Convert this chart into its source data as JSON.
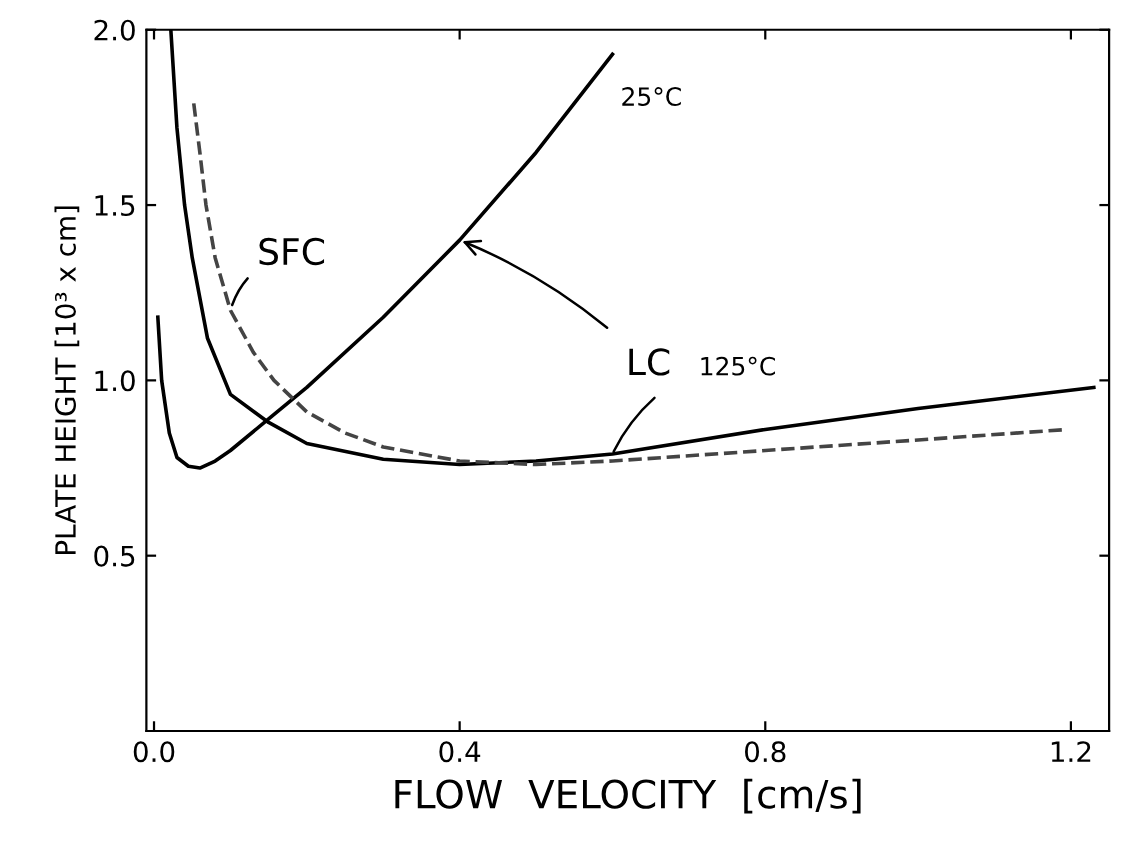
{
  "chart_data": {
    "type": "line",
    "xlabel": "FLOW  VELOCITY  [cm/s]",
    "ylabel": "PLATE HEIGHT [10³ x cm]",
    "xlim": [
      -0.01,
      1.25
    ],
    "ylim": [
      0,
      2.0
    ],
    "xticks": [
      {
        "value": 0,
        "label": "0.0"
      },
      0.4,
      0.8,
      1.2
    ],
    "yticks": [
      0.5,
      {
        "value": 1,
        "label": "1.0"
      },
      1.5,
      {
        "value": 2,
        "label": "2.0"
      }
    ],
    "grid": false,
    "legend": false,
    "marker": "none",
    "series": [
      {
        "name": "25°C",
        "color": "#000000",
        "line_style": "solid",
        "x": [
          0.005,
          0.01,
          0.02,
          0.03,
          0.045,
          0.06,
          0.08,
          0.1,
          0.15,
          0.2,
          0.3,
          0.4,
          0.5,
          0.6
        ],
        "values": [
          1.18,
          1.0,
          0.85,
          0.78,
          0.755,
          0.75,
          0.77,
          0.8,
          0.89,
          0.98,
          1.18,
          1.4,
          1.65,
          1.93
        ]
      },
      {
        "name": "125°C",
        "color": "#000000",
        "line_style": "solid",
        "x": [
          0.022,
          0.03,
          0.04,
          0.05,
          0.07,
          0.1,
          0.15,
          0.2,
          0.3,
          0.4,
          0.5,
          0.6,
          0.8,
          1.0,
          1.23
        ],
        "values": [
          2.0,
          1.72,
          1.5,
          1.35,
          1.12,
          0.96,
          0.88,
          0.82,
          0.775,
          0.76,
          0.77,
          0.79,
          0.86,
          0.92,
          0.98
        ]
      },
      {
        "name": "SFC",
        "color": "#444444",
        "line_style": "dashed",
        "x": [
          0.052,
          0.06,
          0.068,
          0.08,
          0.1,
          0.13,
          0.157,
          0.2,
          0.25,
          0.3,
          0.4,
          0.5,
          0.6,
          0.8,
          1.0,
          1.195
        ],
        "values": [
          1.79,
          1.65,
          1.5,
          1.35,
          1.2,
          1.08,
          1.0,
          0.91,
          0.85,
          0.81,
          0.77,
          0.76,
          0.77,
          0.8,
          0.83,
          0.86
        ]
      }
    ],
    "annotations": [
      {
        "text": "LC",
        "x": 0.4,
        "y": 1.4
      }
    ]
  }
}
